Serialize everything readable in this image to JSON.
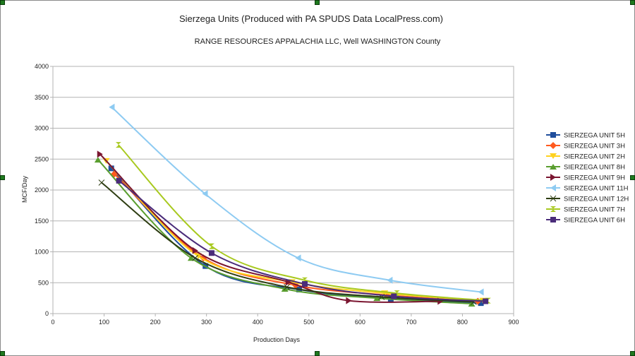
{
  "chart_data": {
    "type": "line",
    "title": "Sierzega Units (Produced with PA SPUDS Data LocalPress.com)",
    "subtitle": "RANGE RESOURCES APPALACHIA LLC, Well  WASHINGTON County",
    "xlabel": "Production Days",
    "ylabel": "MCF/Day",
    "xlim": [
      0,
      900
    ],
    "ylim": [
      0,
      4000
    ],
    "xticks": [
      0,
      100,
      200,
      300,
      400,
      500,
      600,
      700,
      800,
      900
    ],
    "yticks": [
      0,
      500,
      1000,
      1500,
      2000,
      2500,
      3000,
      3500,
      4000
    ],
    "grid": "horizontal",
    "legend": "right",
    "series": [
      {
        "name": "SIERZEGA UNIT 5H",
        "color": "#1f4e9c",
        "marker": "square",
        "x": [
          114,
          298,
          481,
          660,
          836
        ],
        "y": [
          2350,
          770,
          390,
          240,
          170
        ]
      },
      {
        "name": "SIERZEGA UNIT 3H",
        "color": "#ff5a1f",
        "marker": "diamond",
        "x": [
          120,
          294,
          474,
          652,
          830
        ],
        "y": [
          2260,
          900,
          460,
          300,
          200
        ]
      },
      {
        "name": "SIERZEGA UNIT 2H",
        "color": "#ffd21f",
        "marker": "triangle-down",
        "x": [
          104,
          284,
          467,
          648,
          840
        ],
        "y": [
          2470,
          930,
          510,
          330,
          210
        ]
      },
      {
        "name": "SIERZEGA UNIT 8H",
        "color": "#5a9e2f",
        "marker": "triangle-up",
        "x": [
          88,
          270,
          453,
          633,
          818
        ],
        "y": [
          2490,
          900,
          400,
          250,
          160
        ]
      },
      {
        "name": "SIERZEGA UNIT 9H",
        "color": "#7b1631",
        "marker": "triangle-right",
        "x": [
          92,
          278,
          460,
          578,
          757
        ],
        "y": [
          2580,
          1020,
          510,
          210,
          200
        ]
      },
      {
        "name": "SIERZEGA UNIT 11H",
        "color": "#8ecbf2",
        "marker": "triangle-left",
        "x": [
          115,
          297,
          479,
          658,
          836
        ],
        "y": [
          3340,
          1940,
          900,
          540,
          350
        ]
      },
      {
        "name": "SIERZEGA UNIT 12H",
        "color": "#2e3d12",
        "marker": "bowtie",
        "x": [
          95,
          278,
          457,
          642,
          822
        ],
        "y": [
          2120,
          900,
          430,
          270,
          190
        ]
      },
      {
        "name": "SIERZEGA UNIT 7H",
        "color": "#a8c91f",
        "marker": "hourglass",
        "x": [
          128,
          310,
          492,
          672,
          850
        ],
        "y": [
          2730,
          1090,
          540,
          330,
          210
        ]
      },
      {
        "name": "SIERZEGA UNIT 6H",
        "color": "#4a2c7a",
        "marker": "square",
        "x": [
          129,
          310,
          492,
          666,
          845
        ],
        "y": [
          2150,
          980,
          480,
          280,
          200
        ]
      }
    ]
  }
}
